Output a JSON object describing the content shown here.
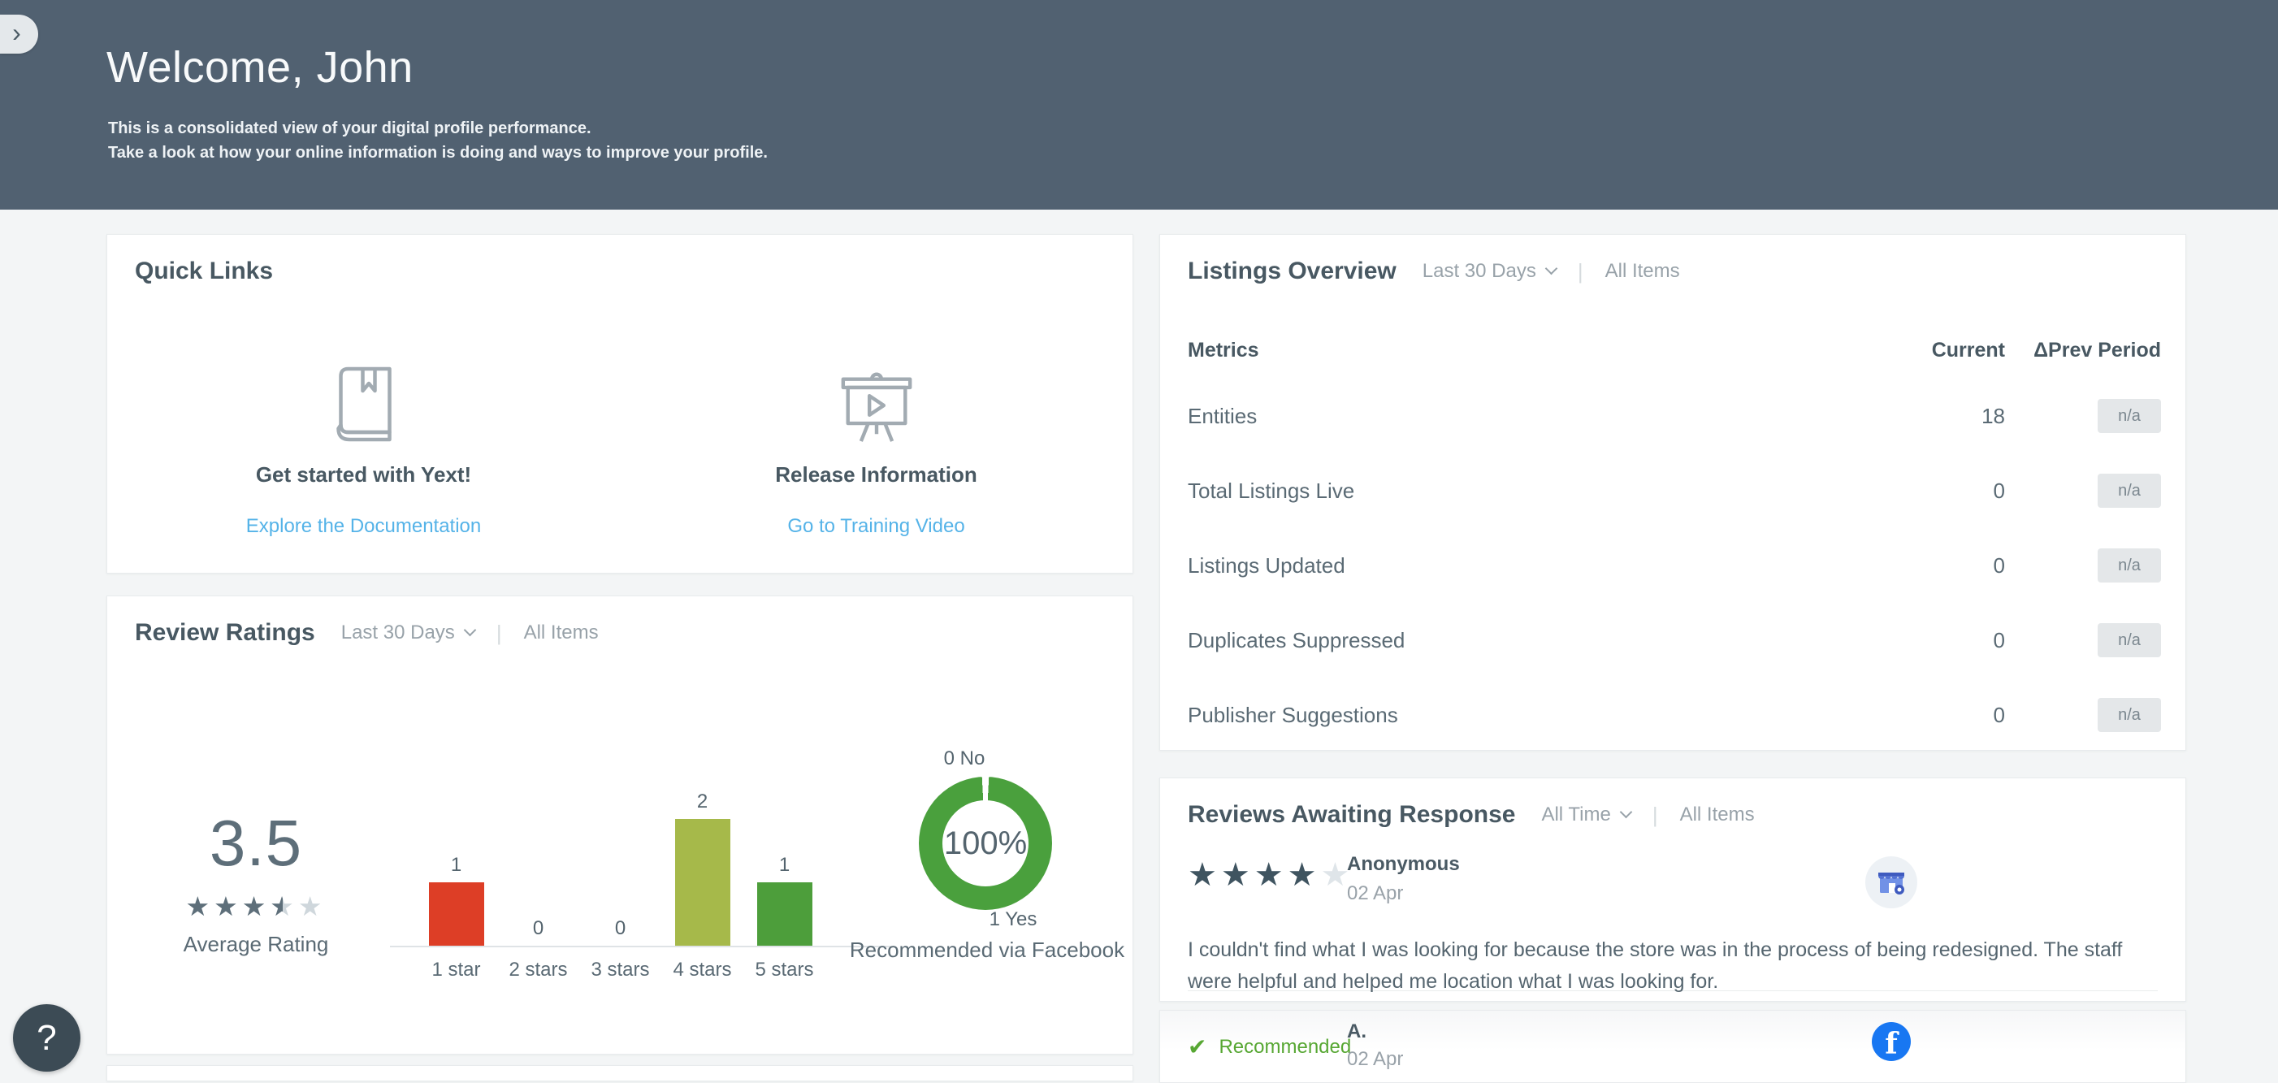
{
  "header": {
    "title": "Welcome, John",
    "subtitle_line1": "This is a consolidated view of your digital profile performance.",
    "subtitle_line2": "Take a look at how your online information is doing and ways to improve your profile.",
    "background": "#516171"
  },
  "sidebar_toggle": {
    "icon": "chevron-right-icon",
    "glyph": "›"
  },
  "help_button": {
    "label": "?"
  },
  "quick_links": {
    "title": "Quick Links",
    "items": [
      {
        "icon": "book-icon",
        "title": "Get started with Yext!",
        "link_label": "Explore the Documentation"
      },
      {
        "icon": "presentation-play-icon",
        "title": "Release Information",
        "link_label": "Go to Training Video"
      }
    ]
  },
  "listings_overview": {
    "title": "Listings Overview",
    "period_filter": "Last 30 Days",
    "items_filter": "All Items",
    "columns": {
      "metric": "Metrics",
      "current": "Current",
      "prev": "ΔPrev Period"
    },
    "rows": [
      {
        "metric": "Entities",
        "current": "18",
        "prev_period": "n/a"
      },
      {
        "metric": "Total Listings Live",
        "current": "0",
        "prev_period": "n/a"
      },
      {
        "metric": "Listings Updated",
        "current": "0",
        "prev_period": "n/a"
      },
      {
        "metric": "Duplicates Suppressed",
        "current": "0",
        "prev_period": "n/a"
      },
      {
        "metric": "Publisher Suggestions",
        "current": "0",
        "prev_period": "n/a"
      }
    ]
  },
  "review_ratings": {
    "title": "Review Ratings",
    "period_filter": "Last 30 Days",
    "items_filter": "All Items",
    "average_rating": {
      "value": "3.5",
      "stars": 3.5,
      "max_stars": 5,
      "label": "Average Rating"
    }
  },
  "chart_data": [
    {
      "type": "bar",
      "title": "Review Ratings",
      "categories": [
        "1 star",
        "2 stars",
        "3 stars",
        "4 stars",
        "5 stars"
      ],
      "values": [
        1,
        0,
        0,
        2,
        1
      ],
      "colors": [
        "#dd3e26",
        "#c9cdd2",
        "#c9cdd2",
        "#a6b94a",
        "#4d9e3b"
      ],
      "ylim": [
        0,
        2
      ],
      "grid": false,
      "xlabel": "",
      "ylabel": ""
    },
    {
      "type": "donut",
      "title": "Recommended via Facebook",
      "segments": [
        {
          "label": "Yes",
          "value": 1,
          "color": "#4aa03d"
        },
        {
          "label": "No",
          "value": 0,
          "color": "#4aa03d"
        }
      ],
      "center_label": "100%",
      "label_no": "0 No",
      "label_yes": "1 Yes",
      "caption": "Recommended via Facebook"
    }
  ],
  "reviews_awaiting": {
    "title": "Reviews Awaiting Response",
    "period_filter": "All Time",
    "items_filter": "All Items",
    "reviews": [
      {
        "rating_stars": 4,
        "max_stars": 5,
        "author": "Anonymous",
        "date": "02 Apr",
        "source_icon": "google-business-icon",
        "text": "I couldn't find what I was looking for because the store was in the process of being redesigned. The staff were helpful and helped me location what I was looking for."
      },
      {
        "recommended_label": "Recommended",
        "author": "A.",
        "date": "02 Apr",
        "source_icon": "facebook-icon"
      }
    ]
  },
  "colors": {
    "page_background": "#f3f5f6",
    "header_background": "#516171",
    "link_blue": "#55b3e8",
    "bar_red": "#dd3e26",
    "bar_yellow_green": "#a6b94a",
    "bar_green": "#4d9e3b",
    "donut_green": "#4aa03d",
    "recommended_green": "#57a733",
    "facebook_blue": "#1877f2",
    "star_filled_dark": "#3f5460",
    "star_filled_avg": "#5e6f7a",
    "star_empty": "#dfe5e9"
  }
}
